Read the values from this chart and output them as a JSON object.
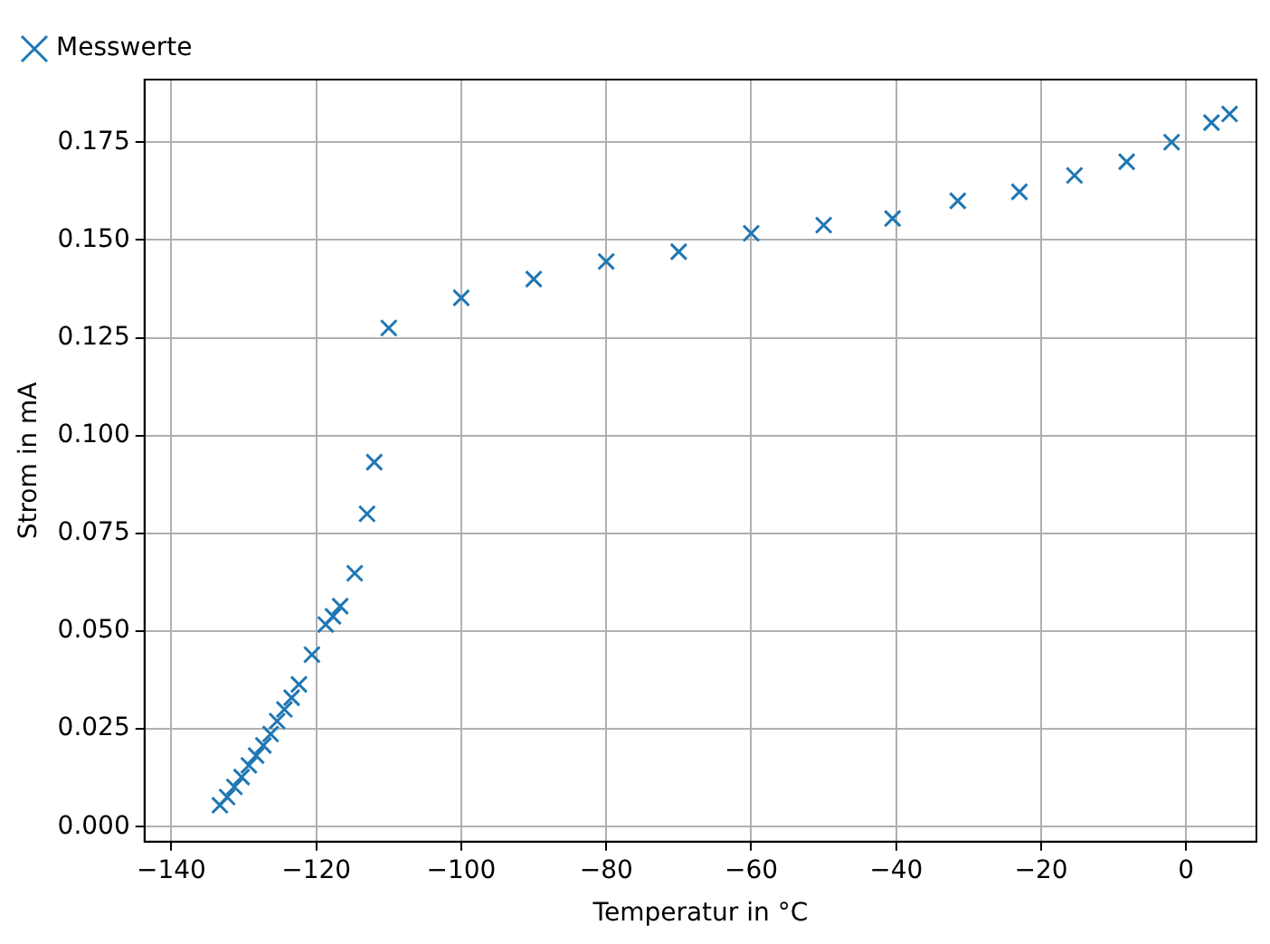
{
  "chart_data": {
    "type": "scatter",
    "xlabel": "Temperatur in °C",
    "ylabel": "Strom in mA",
    "series": [
      {
        "name": "Messwerte",
        "color": "#1f77b4",
        "x": [
          -133.3,
          -132.3,
          -131.3,
          -130.3,
          -129.3,
          -128.3,
          -127.3,
          -126.3,
          -125.4,
          -124.4,
          -123.4,
          -122.4,
          -120.6,
          -118.7,
          -117.7,
          -116.7,
          -114.7,
          -113,
          -112,
          -110,
          -100,
          -90,
          -80,
          -70,
          -60,
          -50,
          -40.5,
          -31.5,
          -23,
          -15.4,
          -8.2,
          -2,
          3.5,
          6
        ],
        "values": [
          0.0055,
          0.0076,
          0.0102,
          0.0127,
          0.0157,
          0.0182,
          0.0208,
          0.0237,
          0.027,
          0.03,
          0.033,
          0.0364,
          0.044,
          0.0517,
          0.0538,
          0.0564,
          0.0648,
          0.08,
          0.0932,
          0.1275,
          0.1352,
          0.14,
          0.1445,
          0.147,
          0.1517,
          0.1538,
          0.1555,
          0.16,
          0.1623,
          0.1665,
          0.17,
          0.175,
          0.18,
          0.1822
        ]
      }
    ],
    "xlim": [
      -143.7,
      9.7
    ],
    "xticks": [
      {
        "value": -140,
        "label": "−140"
      },
      {
        "value": -120,
        "label": "−120"
      },
      {
        "value": -100,
        "label": "−100"
      },
      {
        "value": -80,
        "label": "−80"
      },
      {
        "value": -60,
        "label": "−60"
      },
      {
        "value": -40,
        "label": "−40"
      },
      {
        "value": -20,
        "label": "−20"
      },
      0
    ],
    "ylim": [
      -0.0038,
      0.191
    ],
    "yticks": [
      {
        "value": 0,
        "label": "0.000"
      },
      0.025,
      {
        "value": 0.05,
        "label": "0.050"
      },
      0.075,
      {
        "value": 0.1,
        "label": "0.100"
      },
      0.125,
      {
        "value": 0.15,
        "label": "0.150"
      },
      0.175
    ],
    "grid": true,
    "legend": "top left",
    "marker": "cross"
  }
}
